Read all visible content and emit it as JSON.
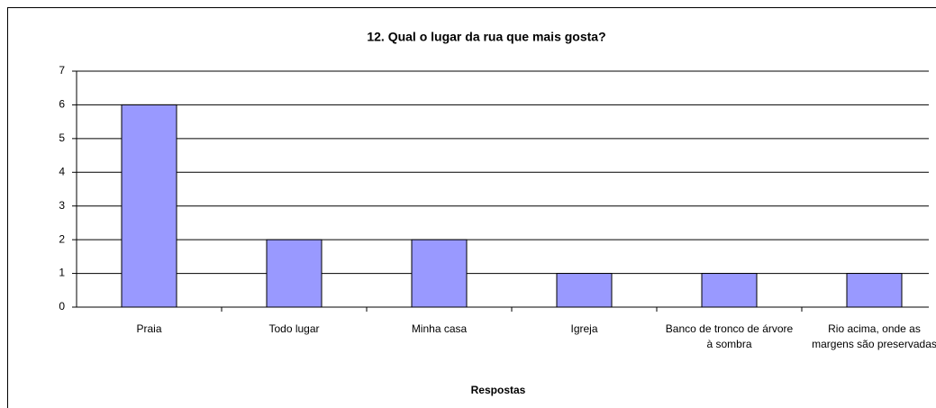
{
  "chart_data": {
    "type": "bar",
    "title": "12. Qual o lugar da rua que mais gosta?",
    "x_label": "Respostas",
    "categories": [
      "Praia",
      "Todo lugar",
      "Minha casa",
      "Igreja",
      "Banco de tronco de árvore à sombra",
      "Rio acima, onde as margens são preservadas"
    ],
    "values": [
      6,
      2,
      2,
      1,
      1,
      1
    ],
    "color": "#9999ff",
    "ylim": [
      0,
      7
    ],
    "yticks": [
      0,
      1,
      2,
      3,
      4,
      5,
      6,
      7
    ],
    "grid": true
  }
}
